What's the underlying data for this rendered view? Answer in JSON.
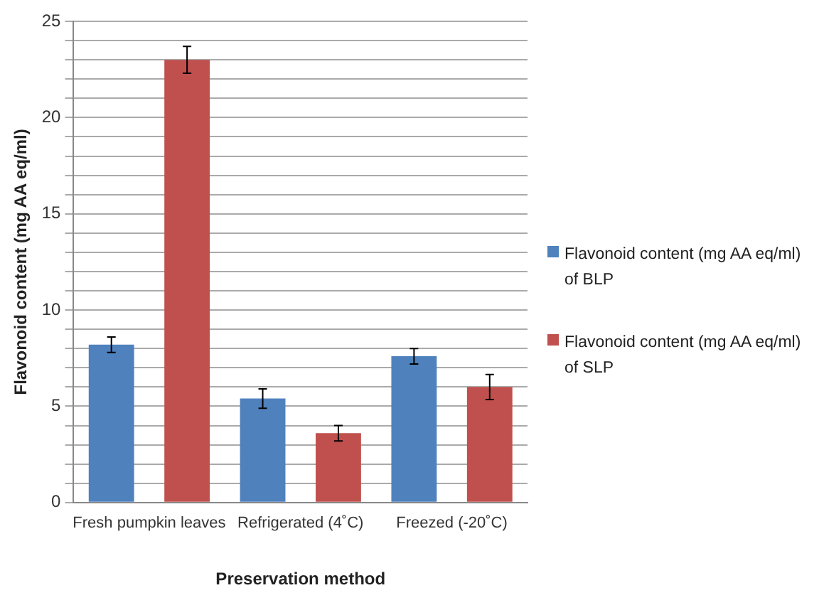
{
  "chart_data": {
    "type": "bar",
    "ylabel": "Flavonoid content (mg AA eq/ml)",
    "xlabel": "Preservation method",
    "categories": [
      "Fresh pumpkin leaves",
      "Refrigerated (4˚C)",
      "Freezed (-20˚C)"
    ],
    "series": [
      {
        "name": "Flavonoid content (mg AA eq/ml) of BLP",
        "color": "#4f81bd",
        "values": [
          8.2,
          5.4,
          7.6
        ],
        "errors": [
          0.4,
          0.5,
          0.4
        ]
      },
      {
        "name": "Flavonoid content (mg AA eq/ml) of SLP",
        "color": "#c0504d",
        "values": [
          23,
          3.6,
          6.0
        ],
        "errors": [
          0.7,
          0.4,
          0.65
        ]
      }
    ],
    "ylim": [
      0,
      25
    ],
    "yticks": [
      0,
      {
        "value": 1,
        "label": null
      },
      {
        "value": 2,
        "label": null
      },
      {
        "value": 3,
        "label": null
      },
      {
        "value": 4,
        "label": null
      },
      5,
      {
        "value": 6,
        "label": null
      },
      {
        "value": 7,
        "label": null
      },
      {
        "value": 8,
        "label": null
      },
      {
        "value": 9,
        "label": null
      },
      10,
      {
        "value": 11,
        "label": null
      },
      {
        "value": 12,
        "label": null
      },
      {
        "value": 13,
        "label": null
      },
      {
        "value": 14,
        "label": null
      },
      15,
      {
        "value": 16,
        "label": null
      },
      {
        "value": 17,
        "label": null
      },
      {
        "value": 18,
        "label": null
      },
      {
        "value": 19,
        "label": null
      },
      20,
      {
        "value": 21,
        "label": null
      },
      {
        "value": 22,
        "label": null
      },
      {
        "value": 23,
        "label": null
      },
      {
        "value": 24,
        "label": null
      },
      25
    ],
    "grid": "y",
    "legend": "right"
  }
}
